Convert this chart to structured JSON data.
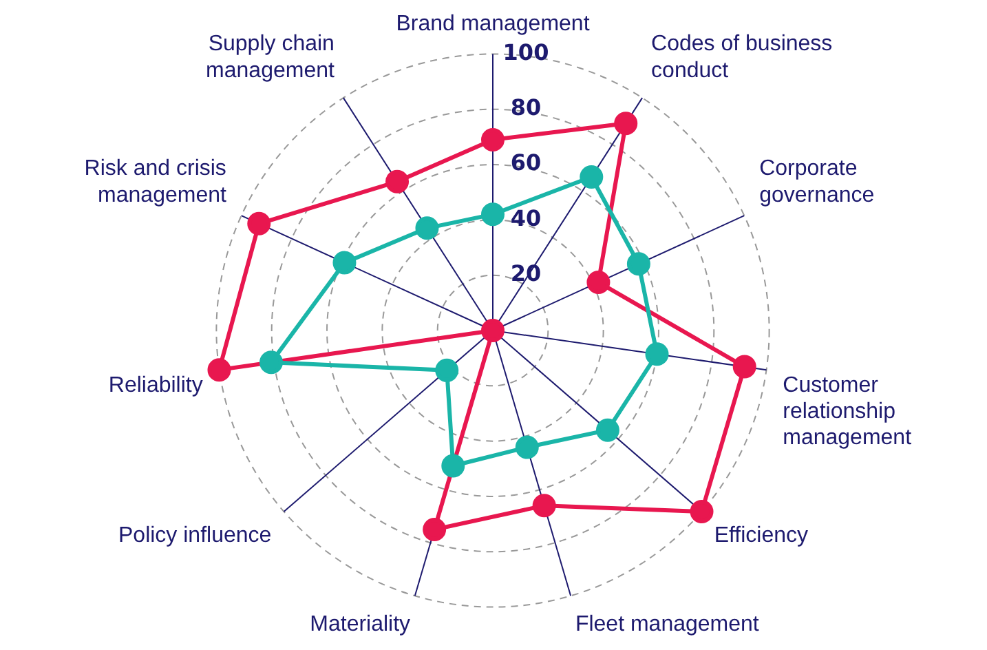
{
  "chart_data": {
    "type": "radar",
    "categories": [
      "Brand management",
      "Codes of business conduct",
      "Corporate governance",
      "Customer relationship management",
      "Efficiency",
      "Fleet management",
      "Materiality",
      "Policy influence",
      "Reliability",
      "Risk and crisis management",
      "Supply chain management"
    ],
    "series": [
      {
        "color": "#1ab5a8",
        "values": [
          42,
          66,
          58,
          60,
          55,
          44,
          51,
          22,
          81,
          59,
          44
        ]
      },
      {
        "color": "#e8174f",
        "values": [
          69,
          89,
          42,
          92,
          100,
          66,
          75,
          0,
          100,
          93,
          64
        ]
      }
    ],
    "ylim": [
      0,
      100
    ],
    "yticks": [
      20,
      40,
      60,
      80,
      100
    ],
    "grid": true,
    "marker": "circle",
    "line_style": "solid"
  }
}
